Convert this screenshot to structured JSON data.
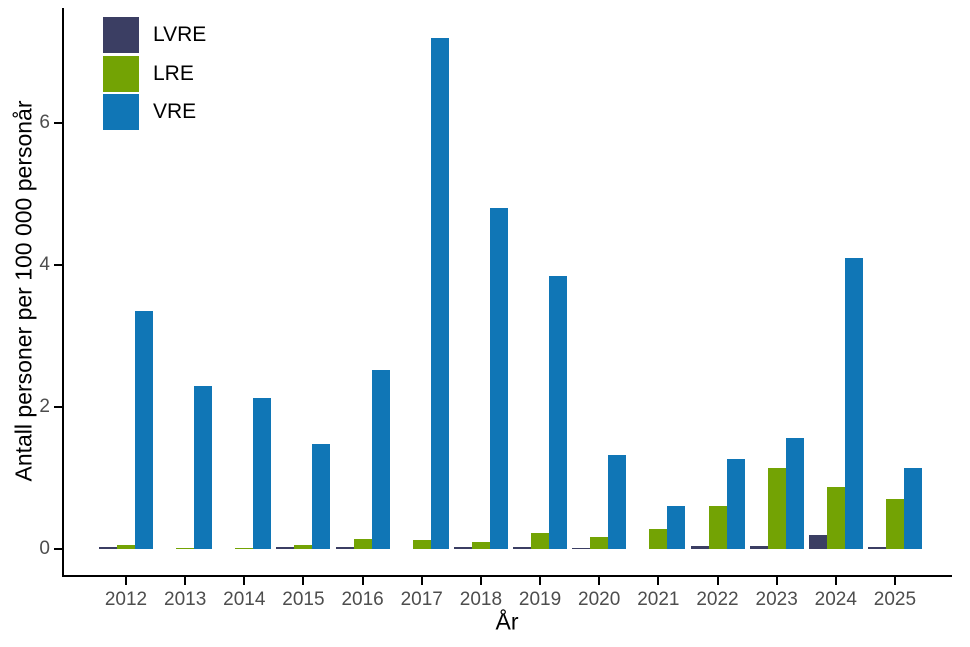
{
  "figure": {
    "background": "#ffffff",
    "tick_text_color": "#4d4d4d",
    "axis_color": "#000000"
  },
  "chart_data": {
    "type": "bar",
    "title": "",
    "xlabel": "År",
    "ylabel": "Antall personer per 100 000 personår",
    "categories": [
      "2012",
      "2013",
      "2014",
      "2015",
      "2016",
      "2017",
      "2018",
      "2019",
      "2020",
      "2021",
      "2022",
      "2023",
      "2024",
      "2025"
    ],
    "series": [
      {
        "name": "LVRE",
        "color": "#3b3e63",
        "values": [
          0.03,
          0,
          0,
          0.03,
          0.03,
          0,
          0.03,
          0.03,
          0.02,
          0,
          0.04,
          0.04,
          0.2,
          0.03
        ]
      },
      {
        "name": "LRE",
        "color": "#73a304",
        "values": [
          0.06,
          0.02,
          0.02,
          0.06,
          0.14,
          0.12,
          0.1,
          0.23,
          0.17,
          0.28,
          0.6,
          1.14,
          0.88,
          0.7
        ]
      },
      {
        "name": "VRE",
        "color": "#1076b6",
        "values": [
          3.35,
          2.3,
          2.13,
          1.48,
          2.52,
          7.2,
          4.8,
          3.84,
          1.32,
          0.6,
          1.27,
          1.56,
          4.1,
          1.14
        ]
      }
    ],
    "yticks": [
      0,
      2,
      4,
      6
    ],
    "ylim": [
      0,
      7.6
    ],
    "grid": false,
    "legend_position": "inside-top-left",
    "legend_labels": [
      "LVRE",
      "LRE",
      "VRE"
    ]
  }
}
